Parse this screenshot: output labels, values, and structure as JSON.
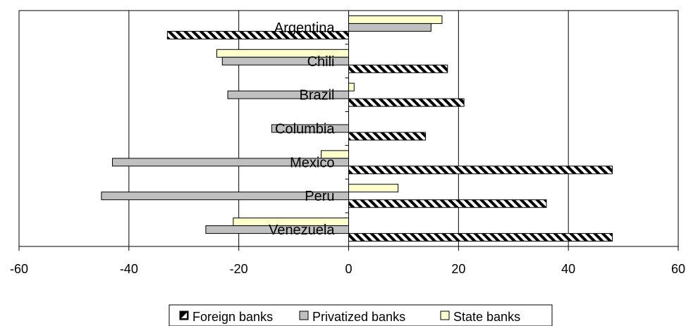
{
  "chart_data": {
    "type": "bar",
    "orientation": "horizontal",
    "categories": [
      "Argentina",
      "Chili",
      "Brazil",
      "Columbia",
      "Mexico",
      "Peru",
      "Venezuela"
    ],
    "series": [
      {
        "name": "Foreign banks",
        "values": [
          -33,
          18,
          21,
          14,
          48,
          36,
          48
        ]
      },
      {
        "name": "Privatized banks",
        "values": [
          15,
          -23,
          -22,
          -14,
          -43,
          -45,
          -26
        ]
      },
      {
        "name": "State banks",
        "values": [
          17,
          -24,
          1,
          0,
          -5,
          9,
          -21
        ]
      }
    ],
    "xlim": [
      -60,
      60
    ],
    "xticks": [
      -60,
      -40,
      -20,
      0,
      20,
      40,
      60
    ],
    "grid": "vertical",
    "legend_position": "bottom",
    "colors": {
      "foreign": "#000000",
      "privatized": "#c0c0c0",
      "state": "#ffffcc"
    },
    "title": "",
    "xlabel": "",
    "ylabel": ""
  }
}
